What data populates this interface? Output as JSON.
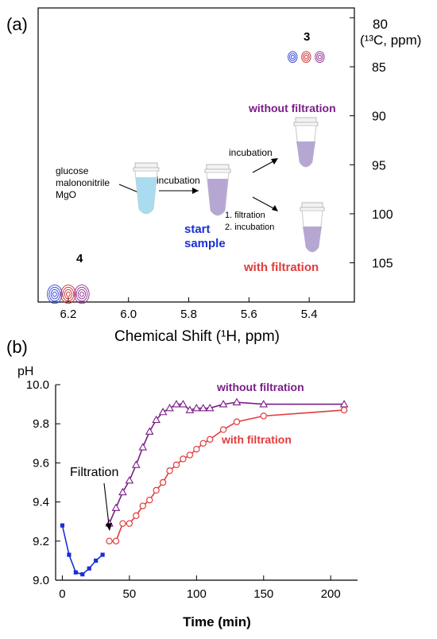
{
  "chart_data": [
    {
      "panel": "(a)",
      "type": "scatter",
      "xlabel": "Chemical Shift (¹H, ppm)",
      "ylabel_line1": "80",
      "ylabel_line2": "(¹³C, ppm)",
      "xlim": [
        6.3,
        5.25
      ],
      "ylim": [
        109,
        79
      ],
      "x_ticks": [
        "6.2",
        "6.0",
        "5.8",
        "5.6",
        "5.4"
      ],
      "y_ticks": [
        "85",
        "90",
        "95",
        "100",
        "105"
      ],
      "y_tick_values": [
        85,
        90,
        95,
        100,
        105
      ],
      "x_tick_values": [
        6.2,
        6.0,
        5.8,
        5.6,
        5.4
      ],
      "peaks": [
        {
          "label": "3",
          "x": [
            5.455,
            5.41,
            5.365
          ],
          "y": 84.0,
          "colors": [
            "#2a3fd6",
            "#cc2b2b",
            "#8a2a8a"
          ]
        },
        {
          "label": "4",
          "x": [
            6.245,
            6.2,
            6.155
          ],
          "y": 108.2,
          "colors": [
            "#2a3fd6",
            "#cc2b2b",
            "#8a2a8a"
          ]
        }
      ],
      "annotations": {
        "reagents": [
          "glucose",
          "malononitrile",
          "MgO"
        ],
        "incubation_1": "incubation",
        "incubation_2": "incubation",
        "step_1": "1. filtration",
        "step_2": "2. incubation",
        "start_sample_1": "start",
        "start_sample_2": "sample",
        "without_filtration": "without filtration",
        "with_filtration": "with filtration"
      }
    },
    {
      "panel": "(b)",
      "type": "line",
      "ylabel": "pH",
      "xlabel": "Time (min)",
      "xlim": [
        -5,
        220
      ],
      "ylim": [
        9.0,
        10.0
      ],
      "x_ticks": [
        "0",
        "50",
        "100",
        "150",
        "200"
      ],
      "x_tick_values": [
        0,
        50,
        100,
        150,
        200
      ],
      "y_ticks": [
        "9.0",
        "9.2",
        "9.4",
        "9.6",
        "9.8",
        "10.0"
      ],
      "y_tick_values": [
        9.0,
        9.2,
        9.4,
        9.6,
        9.8,
        10.0
      ],
      "annotation": "Filtration",
      "series": [
        {
          "name": "",
          "color": "#1a2fd6",
          "marker": "square",
          "x": [
            0,
            5,
            10,
            15,
            20,
            25,
            30
          ],
          "y": [
            9.28,
            9.13,
            9.04,
            9.03,
            9.06,
            9.1,
            9.13
          ]
        },
        {
          "name": "without filtration",
          "color": "#7a1e86",
          "marker": "triangle",
          "x": [
            35,
            40,
            45,
            50,
            55,
            60,
            65,
            70,
            75,
            80,
            85,
            90,
            95,
            100,
            105,
            110,
            120,
            130,
            150,
            210
          ],
          "y": [
            9.29,
            9.37,
            9.45,
            9.51,
            9.59,
            9.68,
            9.76,
            9.82,
            9.86,
            9.88,
            9.9,
            9.9,
            9.87,
            9.88,
            9.88,
            9.88,
            9.9,
            9.91,
            9.9,
            9.9
          ]
        },
        {
          "name": "with filtration",
          "color": "#e23b3b",
          "marker": "circle",
          "x": [
            35,
            40,
            45,
            50,
            55,
            60,
            65,
            70,
            75,
            80,
            85,
            90,
            95,
            100,
            105,
            110,
            120,
            130,
            150,
            210
          ],
          "y": [
            9.2,
            9.2,
            9.29,
            9.29,
            9.33,
            9.38,
            9.41,
            9.46,
            9.5,
            9.56,
            9.59,
            9.62,
            9.64,
            9.67,
            9.7,
            9.72,
            9.77,
            9.81,
            9.84,
            9.87
          ]
        }
      ]
    }
  ],
  "labels": {
    "panel_a": "(a)",
    "panel_b": "(b)",
    "peak_3": "3",
    "peak_4": "4",
    "legend_without": "without filtration",
    "legend_with": "with filtration"
  },
  "colors": {
    "blue": "#1a2fd6",
    "red": "#e23b3b",
    "purple": "#7a1e86",
    "tube_liquid_start": "#a9dcef",
    "tube_liquid_after": "#b6a7d2"
  }
}
